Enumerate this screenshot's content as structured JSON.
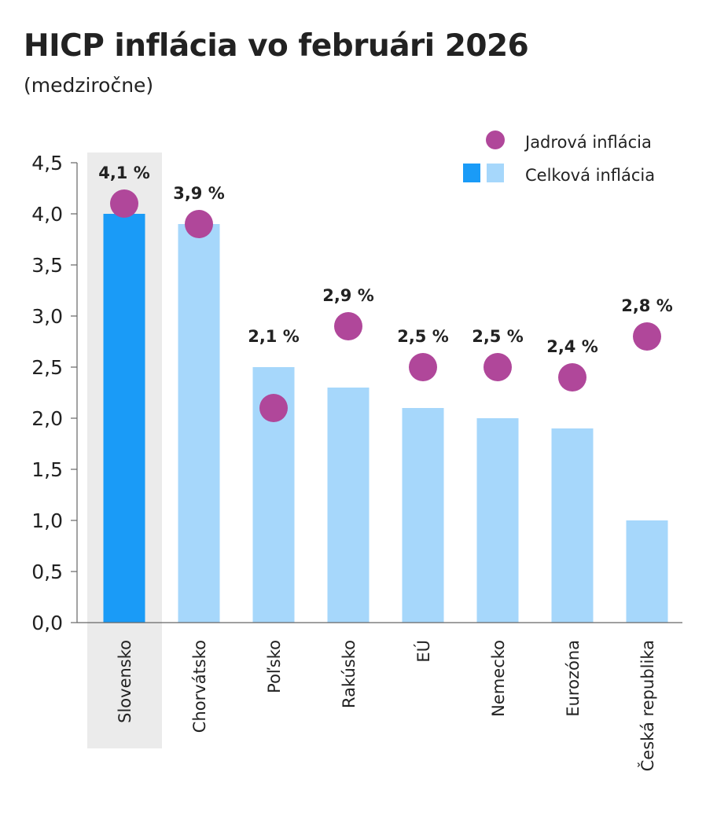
{
  "chart_data": {
    "type": "bar",
    "title": "HICP inflácia vo februári 2026",
    "subtitle": "(medziročne)",
    "xlabel": "",
    "ylabel": "",
    "ylim": [
      0,
      4.5
    ],
    "y_ticks": [
      "0,0",
      "0,5",
      "1,0",
      "1,5",
      "2,0",
      "2,5",
      "3,0",
      "3,5",
      "4,0",
      "4,5"
    ],
    "y_tick_values": [
      0,
      0.5,
      1.0,
      1.5,
      2.0,
      2.5,
      3.0,
      3.5,
      4.0,
      4.5
    ],
    "categories": [
      "Slovensko",
      "Chorvátsko",
      "Poľsko",
      "Rakúsko",
      "EÚ",
      "Nemecko",
      "Eurozóna",
      "Česká republika"
    ],
    "highlight_category": "Slovensko",
    "series": [
      {
        "name": "Celková inflácia",
        "kind": "bar",
        "values": [
          4.0,
          3.9,
          2.5,
          2.3,
          2.1,
          2.0,
          1.9,
          1.0
        ]
      },
      {
        "name": "Jadrová inflácia",
        "kind": "dot",
        "values": [
          4.1,
          3.9,
          2.1,
          2.9,
          2.5,
          2.5,
          2.4,
          2.8
        ],
        "labels": [
          "4,1 %",
          "3,9 %",
          "2,1 %",
          "2,9 %",
          "2,5 %",
          "2,5 %",
          "2,4 %",
          "2,8 %"
        ]
      }
    ],
    "legend": {
      "position": "top-right",
      "entries": [
        "Jadrová inflácia",
        "Celková inflácia"
      ]
    },
    "colors": {
      "bar": "#a6d7fb",
      "bar_highlight": "#1a9bf7",
      "highlight_band": "#ebebeb",
      "dot": "#b0479a",
      "axis": "#666666",
      "text": "#222222"
    }
  }
}
